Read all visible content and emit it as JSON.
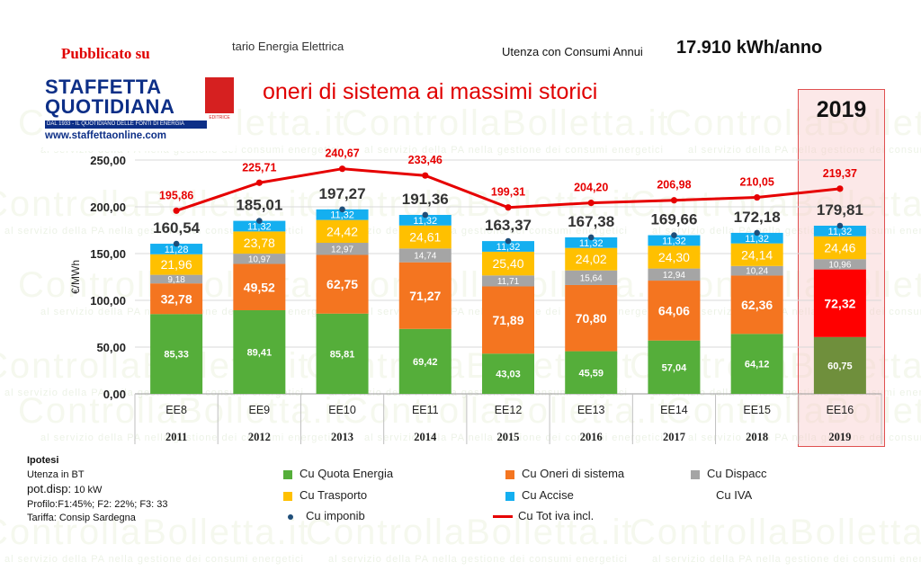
{
  "header": {
    "published_label": "Pubblicato su",
    "logo_line1": "STAFFETTA",
    "logo_line2": "QUOTIDIANA",
    "logo_tagline": "DAL 1933 - IL QUOTIDIANO DELLE FONTI DI ENERGIA",
    "logo_badge": "EDITRICE",
    "logo_url": "www.staffettaonline.com",
    "subtitle_partial": "tario Energia Elettrica",
    "utenza_label": "Utenza con Consumi Annui",
    "utenza_value": "17.910 kWh/anno",
    "headline": "oneri di sistema ai massimi storici",
    "highlight_year": "2019"
  },
  "watermark": {
    "text": "ControllaBolletta.it",
    "tagline": "al servizio della PA nella gestione dei consumi energetici"
  },
  "ipotesi": {
    "title": "Ipotesi",
    "line1": "Utenza in BT",
    "line2_label": "pot.disp:",
    "line2_value": "10 kW",
    "line3": "Profilo:F1:45%; F2: 22%; F3: 33",
    "line4": "Tariffa: Consip Sardegna"
  },
  "colors": {
    "energia": "#55ae3a",
    "oneri": "#f47520",
    "dispacc": "#a5a5a5",
    "trasporto": "#ffc000",
    "accise": "#14aff0",
    "tot": "#e60000",
    "imponib": "#1f4e79",
    "energia_highlight": "#6f8f3c",
    "oneri_highlight": "#ff0000"
  },
  "chart_data": {
    "type": "bar",
    "stacked": true,
    "ylabel": "€/MWh",
    "ylim": [
      0,
      250
    ],
    "yticks": [
      "0,00",
      "50,00",
      "100,00",
      "150,00",
      "200,00",
      "250,00"
    ],
    "categories": [
      "EE8",
      "EE9",
      "EE10",
      "EE11",
      "EE12",
      "EE13",
      "EE14",
      "EE15",
      "EE16"
    ],
    "years": [
      "2011",
      "2012",
      "2013",
      "2014",
      "2015",
      "2016",
      "2017",
      "2018",
      "2019"
    ],
    "series": [
      {
        "name": "Cu Quota Energia",
        "key": "energia",
        "values": [
          85.33,
          89.41,
          85.81,
          69.42,
          43.03,
          45.59,
          57.04,
          64.12,
          60.75
        ],
        "labels": [
          "85,33",
          "89,41",
          "85,81",
          "69,42",
          "43,03",
          "45,59",
          "57,04",
          "64,12",
          "60,75"
        ]
      },
      {
        "name": "Cu Oneri di sistema",
        "key": "oneri",
        "values": [
          32.78,
          49.52,
          62.75,
          71.27,
          71.89,
          70.8,
          64.06,
          62.36,
          72.32
        ],
        "labels": [
          "32,78",
          "49,52",
          "62,75",
          "71,27",
          "71,89",
          "70,80",
          "64,06",
          "62,36",
          "72,32"
        ]
      },
      {
        "name": "Cu Dispacc",
        "key": "dispacc",
        "values": [
          9.18,
          10.97,
          12.97,
          14.74,
          11.71,
          15.64,
          12.94,
          10.24,
          10.96
        ],
        "labels": [
          "9,18",
          "10,97",
          "12,97",
          "14,74",
          "11,71",
          "15,64",
          "12,94",
          "10,24",
          "10,96"
        ]
      },
      {
        "name": "Cu Trasporto",
        "key": "trasporto",
        "values": [
          21.96,
          23.78,
          24.42,
          24.61,
          25.4,
          24.02,
          24.3,
          24.14,
          24.46
        ],
        "labels": [
          "21,96",
          "23,78",
          "24,42",
          "24,61",
          "25,40",
          "24,02",
          "24,30",
          "24,14",
          "24,46"
        ]
      },
      {
        "name": "Cu Accise",
        "key": "accise",
        "values": [
          11.28,
          11.32,
          11.32,
          11.32,
          11.32,
          11.32,
          11.32,
          11.32,
          11.32
        ],
        "labels": [
          "11,28",
          "11,32",
          "11,32",
          "11,32",
          "11,32",
          "11,32",
          "11,32",
          "11,32",
          "11,32"
        ]
      }
    ],
    "imponib": {
      "name": "Cu imponib",
      "values": [
        160.54,
        185.01,
        197.27,
        191.36,
        163.37,
        167.38,
        169.66,
        172.18,
        179.81
      ],
      "labels": [
        "160,54",
        "185,01",
        "197,27",
        "191,36",
        "163,37",
        "167,38",
        "169,66",
        "172,18",
        "179,81"
      ]
    },
    "tot": {
      "name": "Cu Tot iva incl.",
      "values": [
        195.86,
        225.71,
        240.67,
        233.46,
        199.31,
        204.2,
        206.98,
        210.05,
        219.37
      ],
      "labels": [
        "195,86",
        "225,71",
        "240,67",
        "233,46",
        "199,31",
        "204,20",
        "206,98",
        "210,05",
        "219,37"
      ]
    },
    "iva_legend": "Cu IVA",
    "legend_position": "bottom",
    "grid": true
  }
}
